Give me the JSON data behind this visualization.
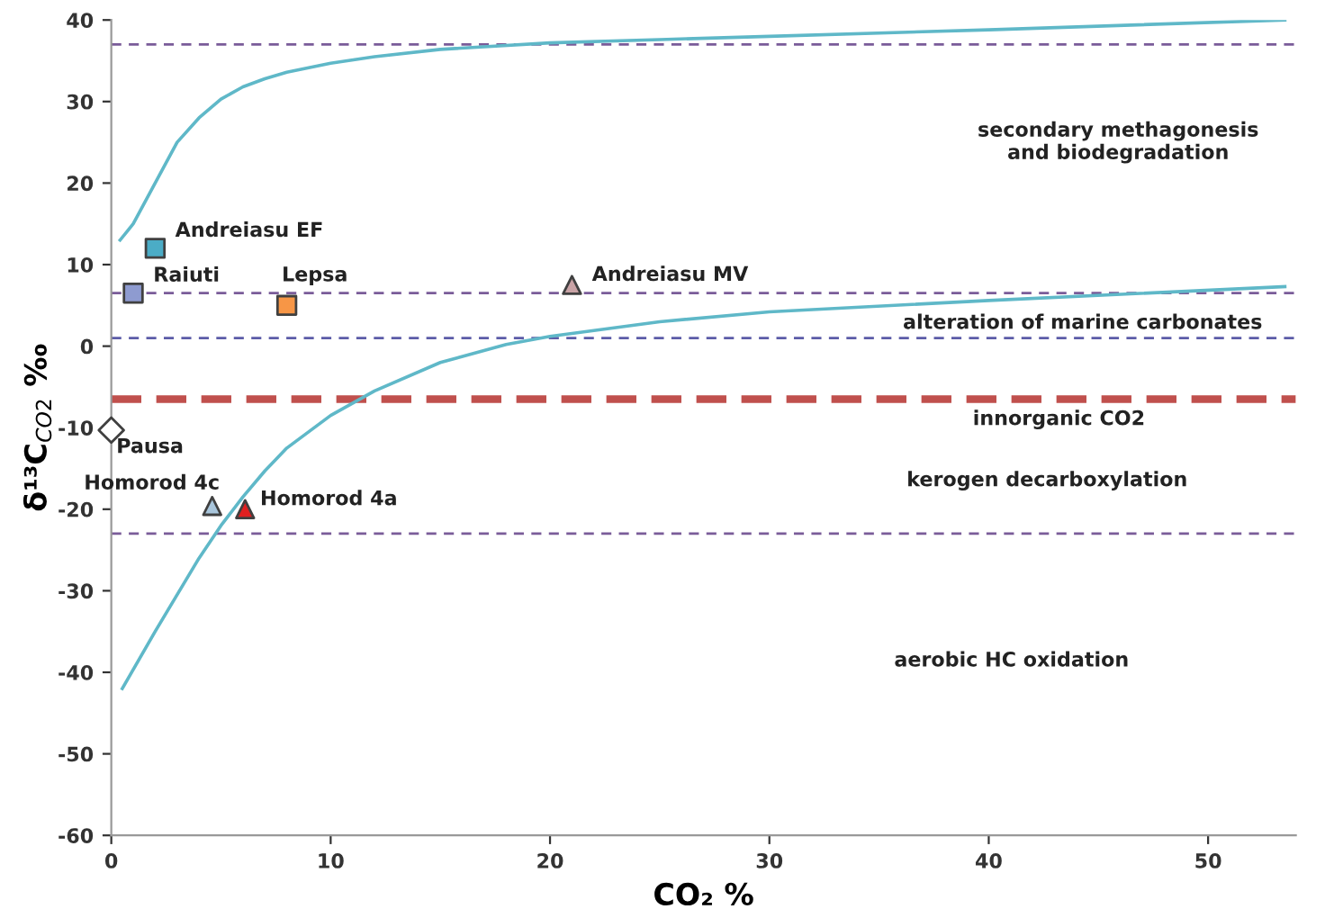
{
  "chart_data": {
    "type": "scatter",
    "xlabel": "CO₂ %",
    "ylabel": "δ¹³C$_{CO2}$ ‰",
    "xlim": [
      0,
      54
    ],
    "ylim": [
      -60,
      40
    ],
    "xticks": [
      0,
      10,
      20,
      30,
      40,
      50
    ],
    "yticks": [
      -60,
      -50,
      -40,
      -30,
      -20,
      -10,
      0,
      10,
      20,
      30,
      40
    ],
    "grid": false,
    "legend": false,
    "series": [
      {
        "name": "Andreiasu EF",
        "color": "#4bacc6",
        "marker": "square",
        "x": [
          2
        ],
        "values": [
          12
        ]
      },
      {
        "name": "Raiuti",
        "color": "#8e9bd0",
        "marker": "square",
        "x": [
          1
        ],
        "values": [
          6.5
        ]
      },
      {
        "name": "Lepsa",
        "color": "#f79646",
        "marker": "square",
        "x": [
          8
        ],
        "values": [
          5
        ]
      },
      {
        "name": "Andreiasu MV",
        "color": "#c9a3a6",
        "marker": "triangle",
        "x": [
          21
        ],
        "values": [
          7.5
        ]
      },
      {
        "name": "Pausa",
        "color": "#ffffff",
        "marker": "diamond",
        "x": [
          0
        ],
        "values": [
          -10.3
        ]
      },
      {
        "name": "Homorod 4c",
        "color": "#a9c6dc",
        "marker": "triangle",
        "x": [
          4.6
        ],
        "values": [
          -19.6
        ]
      },
      {
        "name": "Homorod 4a",
        "color": "#e02020",
        "marker": "triangle",
        "x": [
          6.1
        ],
        "values": [
          -20
        ]
      },
      {
        "type": "line",
        "color": "#5fb8c8",
        "marker": "none",
        "x": [
          0.4,
          1,
          2,
          3,
          4,
          5,
          6,
          7,
          8,
          10,
          12,
          15,
          20,
          25,
          30,
          40,
          53.5
        ],
        "values": [
          13,
          15,
          20,
          25,
          28,
          30.3,
          31.8,
          32.8,
          33.6,
          34.7,
          35.5,
          36.4,
          37.2,
          37.6,
          38,
          38.8,
          40
        ]
      },
      {
        "type": "line",
        "color": "#5fb8c8",
        "marker": "none",
        "x": [
          0.5,
          2,
          4,
          5,
          6,
          7,
          8,
          10,
          12,
          15,
          18,
          20,
          25,
          30,
          40,
          53.5
        ],
        "values": [
          -42,
          -35,
          -26,
          -22,
          -18.5,
          -15.3,
          -12.5,
          -8.5,
          -5.5,
          -2,
          0.2,
          1.2,
          3,
          4.2,
          5.6,
          7.3
        ]
      }
    ],
    "ref_lines": [
      {
        "axis": "y",
        "value": 37,
        "color": "#7a5c99",
        "line_style": "dashed"
      },
      {
        "axis": "y",
        "value": 6.5,
        "color": "#7a5c99",
        "line_style": "dashed"
      },
      {
        "axis": "y",
        "value": 1,
        "color": "#5c5ca8",
        "line_style": "dashed"
      },
      {
        "axis": "y",
        "value": -6.5,
        "color": "#c0504d",
        "line_style": "dashed"
      },
      {
        "axis": "y",
        "value": -23,
        "color": "#7a5c99",
        "line_style": "dashed"
      }
    ],
    "annotations": [
      "secondary methagonesis\nand biodegradation",
      "alteration of marine carbonates",
      "innorganic CO2",
      "kerogen decarboxylation",
      "aerobic HC oxidation"
    ]
  }
}
